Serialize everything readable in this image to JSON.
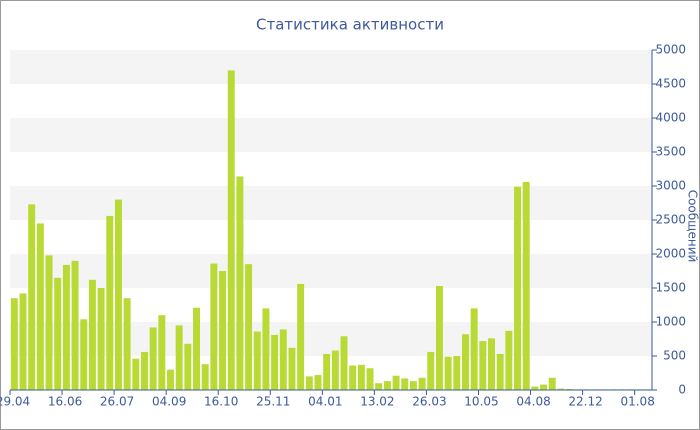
{
  "chart_data": {
    "type": "bar",
    "title": "Статистика активности",
    "y_axis_label": "Сообщений",
    "categories": [
      "29.04",
      null,
      null,
      null,
      null,
      null,
      "16.06",
      null,
      null,
      null,
      null,
      null,
      "26.07",
      null,
      null,
      null,
      null,
      null,
      "04.09",
      null,
      null,
      null,
      null,
      null,
      "16.10",
      null,
      null,
      null,
      null,
      null,
      "25.11",
      null,
      null,
      null,
      null,
      null,
      "04.01",
      null,
      null,
      null,
      null,
      null,
      "13.02",
      null,
      null,
      null,
      null,
      null,
      "26.03",
      null,
      null,
      null,
      null,
      null,
      "10.05",
      null,
      null,
      null,
      null,
      null,
      "04.08",
      null,
      null,
      null,
      null,
      null,
      "22.12",
      null,
      null,
      null,
      null,
      null,
      "01.08",
      null
    ],
    "values": [
      1350,
      1420,
      2730,
      2450,
      1980,
      1650,
      1840,
      1900,
      1040,
      1620,
      1500,
      2560,
      2800,
      1350,
      460,
      560,
      920,
      1100,
      300,
      950,
      680,
      1210,
      380,
      1860,
      1750,
      4700,
      3140,
      1850,
      860,
      1200,
      810,
      890,
      620,
      1560,
      200,
      220,
      530,
      580,
      790,
      360,
      370,
      320,
      100,
      130,
      210,
      170,
      130,
      180,
      560,
      1530,
      490,
      500,
      820,
      1200,
      720,
      760,
      530,
      870,
      2990,
      3060,
      50,
      80,
      180,
      20,
      15,
      10,
      10,
      10,
      10,
      10,
      10,
      10,
      10,
      10
    ],
    "color": "#b9d934",
    "ylim": [
      0,
      5000
    ],
    "yticks": [
      0,
      500,
      1000,
      1500,
      2000,
      2500,
      3000,
      3500,
      4000,
      4500,
      5000
    ],
    "grid": "bands"
  }
}
